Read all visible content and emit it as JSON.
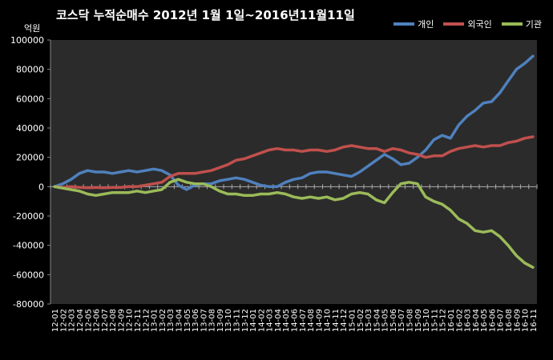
{
  "chart_data": {
    "type": "line",
    "title": "코스닥  누적순매수 2012년 1월 1일~2016년11월11일",
    "ylabel": "억원",
    "ylim": [
      -80000,
      100000
    ],
    "ytick_step": 20000,
    "grid": false,
    "legend_position": "top-right",
    "categories": [
      "12-01",
      "12-02",
      "12-03",
      "12-04",
      "12-05",
      "12-06",
      "12-07",
      "12-08",
      "12-09",
      "12-10",
      "12-11",
      "12-12",
      "13-01",
      "13-02",
      "13-03",
      "13-04",
      "13-05",
      "13-06",
      "13-07",
      "13-08",
      "13-09",
      "13-10",
      "13-11",
      "13-12",
      "14-01",
      "14-02",
      "14-03",
      "14-04",
      "14-05",
      "14-06",
      "14-07",
      "14-08",
      "14-09",
      "14-10",
      "14-11",
      "14-12",
      "15-01",
      "15-02",
      "15-03",
      "15-04",
      "15-05",
      "15-06",
      "15-07",
      "15-08",
      "15-09",
      "15-10",
      "15-11",
      "15-12",
      "16-01",
      "16-02",
      "16-03",
      "16-04",
      "16-05",
      "16-06",
      "16-07",
      "16-08",
      "16-09",
      "16-10",
      "16-11"
    ],
    "series": [
      {
        "name": "개인",
        "color": "#4f81bd",
        "values": [
          0,
          2000,
          5000,
          9000,
          11000,
          10000,
          10000,
          9000,
          10000,
          11000,
          10000,
          11000,
          12000,
          11000,
          8000,
          1000,
          -2000,
          1000,
          2000,
          2000,
          4000,
          5000,
          6000,
          5000,
          3000,
          1000,
          0,
          0,
          3000,
          5000,
          6000,
          9000,
          10000,
          10000,
          9000,
          8000,
          7000,
          10000,
          14000,
          18000,
          22000,
          19000,
          15000,
          16000,
          20000,
          25000,
          32000,
          35000,
          33000,
          42000,
          48000,
          52000,
          57000,
          58000,
          64000,
          72000,
          80000,
          84000,
          89000
        ]
      },
      {
        "name": "외국인",
        "color": "#c0504d",
        "values": [
          0,
          -500,
          0,
          -500,
          -800,
          -500,
          -800,
          -500,
          -500,
          0,
          0,
          1000,
          2000,
          3000,
          7000,
          9000,
          9000,
          9000,
          10000,
          11000,
          13000,
          15000,
          18000,
          19000,
          21000,
          23000,
          25000,
          26000,
          25000,
          25000,
          24000,
          25000,
          25000,
          24000,
          25000,
          27000,
          28000,
          27000,
          26000,
          26000,
          24000,
          26000,
          25000,
          23000,
          22000,
          20000,
          21000,
          21000,
          24000,
          26000,
          27000,
          28000,
          27000,
          28000,
          28000,
          30000,
          31000,
          33000,
          34000
        ]
      },
      {
        "name": "기관",
        "color": "#9bbb59",
        "values": [
          0,
          -1000,
          -2000,
          -3000,
          -5000,
          -6000,
          -5000,
          -4000,
          -4000,
          -4000,
          -3000,
          -4000,
          -3000,
          -2000,
          3000,
          5000,
          3000,
          2000,
          2000,
          0,
          -3000,
          -5000,
          -5000,
          -6000,
          -6000,
          -5000,
          -5000,
          -4000,
          -5000,
          -7000,
          -8000,
          -7000,
          -8000,
          -7000,
          -9000,
          -8000,
          -5000,
          -4000,
          -5000,
          -9000,
          -11000,
          -4000,
          2000,
          3000,
          2000,
          -7000,
          -10000,
          -12000,
          -16000,
          -22000,
          -25000,
          -30000,
          -31000,
          -30000,
          -34000,
          -40000,
          -47000,
          -52000,
          -55000
        ]
      }
    ]
  }
}
